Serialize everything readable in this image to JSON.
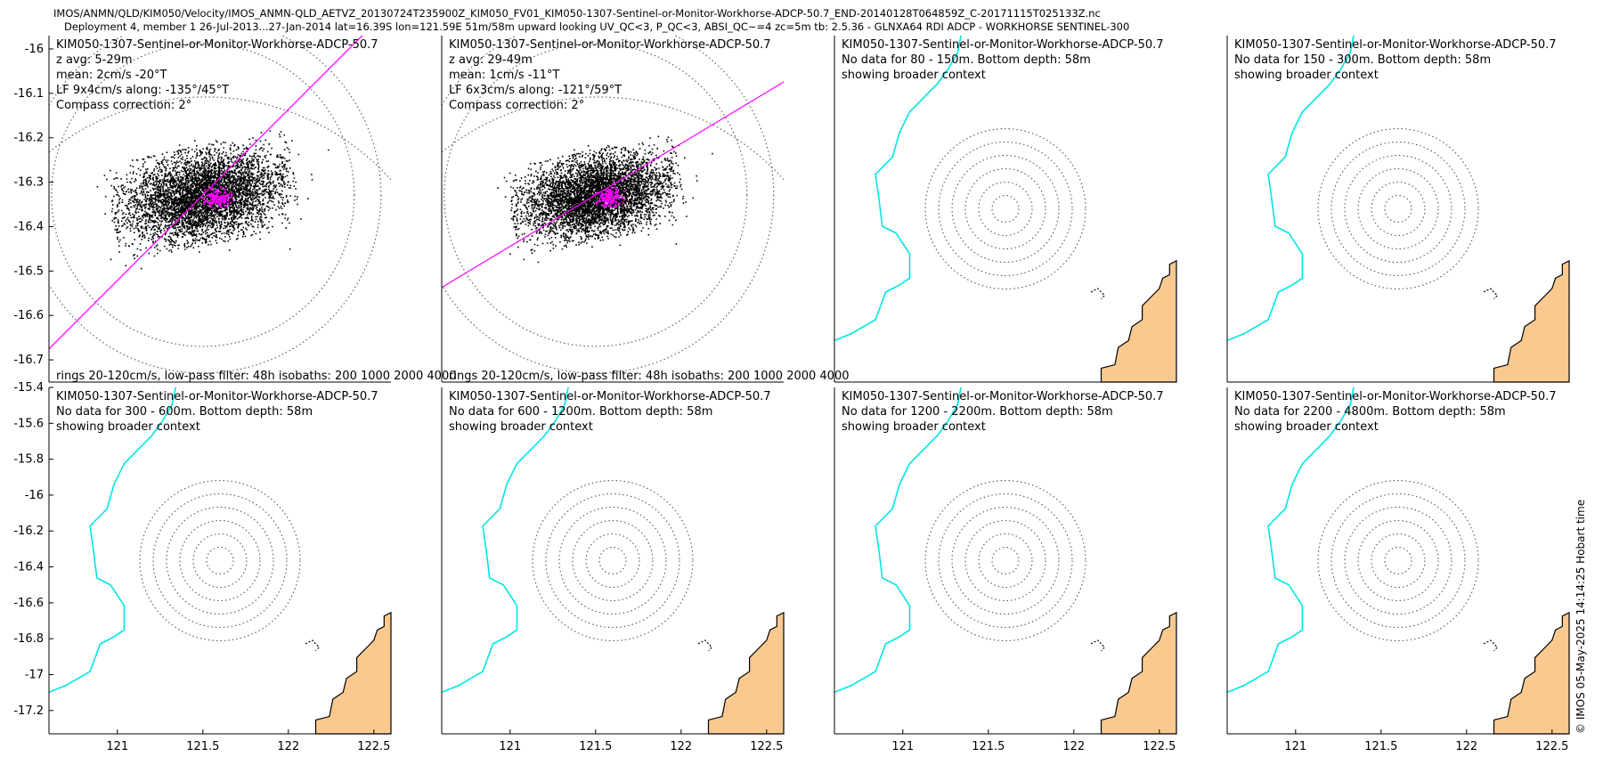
{
  "header": {
    "line1": "IMOS/ANMN/QLD/KIM050/Velocity/IMOS_ANMN-QLD_AETVZ_20130724T235900Z_KIM050_FV01_KIM050-1307-Sentinel-or-Monitor-Workhorse-ADCP-50.7_END-20140128T064859Z_C-20171115T025133Z.nc",
    "line2": "Deployment 4, member 1 26-Jul-2013...27-Jan-2014 lat=16.39S lon=121.59E 51m/58m upward looking UV_QC<3, P_QC<3, ABSI_QC~=4 zc=5m tb: 2.5.36 - GLNXA64 RDI ADCP - WORKHORSE SENTINEL-300"
  },
  "side_label": "© IMOS 05-May-2025 14:14:25 Hobart time",
  "colors": {
    "scatter": "#000000",
    "lowpass": "#ff00ff",
    "coastline": "#00e5e5",
    "land": "#f9c98f",
    "rings": "#555555"
  },
  "chart_data": [
    {
      "type": "scatter",
      "title": "KIM050-1307-Sentinel-or-Monitor-Workhorse-ADCP-50.7",
      "annotations": [
        "z avg: 5-29m",
        "mean: 2cm/s -20°T",
        "LF 9x4cm/s along: -135°/45°T",
        "Compass correction: 2°"
      ],
      "footer": "rings 20-120cm/s, low-pass filter: 48h isobaths: 200 1000 2000 4000",
      "xlim": [
        120.6,
        122.6
      ],
      "ylim": [
        -16.75,
        -15.97
      ],
      "yticks": [
        -16,
        -16.1,
        -16.2,
        -16.3,
        -16.4,
        -16.5,
        -16.6,
        -16.7
      ],
      "center": [
        121.59,
        -16.39
      ],
      "ellipse": {
        "semi_major": 0.56,
        "semi_minor": 0.22,
        "orientation_deg": -12
      },
      "principal_axis_deg": 45,
      "rings": [
        120
      ],
      "has_data": true
    },
    {
      "type": "scatter",
      "title": "KIM050-1307-Sentinel-or-Monitor-Workhorse-ADCP-50.7",
      "annotations": [
        "z avg: 29-49m",
        "mean: 1cm/s -11°T",
        "LF 6x3cm/s along: -121°/59°T",
        "Compass correction: 2°"
      ],
      "footer": "rings 20-120cm/s, low-pass filter: 48h isobaths: 200 1000 2000 4000",
      "xlim": [
        120.6,
        122.6
      ],
      "ylim": [
        -16.75,
        -15.97
      ],
      "yticks": [],
      "center": [
        121.59,
        -16.39
      ],
      "ellipse": {
        "semi_major": 0.52,
        "semi_minor": 0.2,
        "orientation_deg": -12
      },
      "principal_axis_deg": 31,
      "rings": [
        120
      ],
      "has_data": true
    },
    {
      "type": "scatter",
      "title": "KIM050-1307-Sentinel-or-Monitor-Workhorse-ADCP-50.7",
      "annotations": [
        "No data for 80 - 150m. Bottom depth: 58m",
        "showing broader context"
      ],
      "xlim": [
        120.6,
        122.6
      ],
      "yticks": [],
      "center": [
        121.59,
        -16.39
      ],
      "rings": [
        20,
        40,
        60,
        80,
        100,
        120
      ],
      "has_data": false
    },
    {
      "type": "scatter",
      "title": "KIM050-1307-Sentinel-or-Monitor-Workhorse-ADCP-50.7",
      "annotations": [
        "No data for 150 - 300m. Bottom depth: 58m",
        "showing broader context"
      ],
      "xlim": [
        120.6,
        122.6
      ],
      "yticks": [],
      "center": [
        121.59,
        -16.39
      ],
      "rings": [
        20,
        40,
        60,
        80,
        100,
        120
      ],
      "has_data": false
    },
    {
      "type": "scatter",
      "title": "KIM050-1307-Sentinel-or-Monitor-Workhorse-ADCP-50.7",
      "annotations": [
        "No data for 300 - 600m. Bottom depth: 58m",
        "showing broader context"
      ],
      "xlim": [
        120.6,
        122.6
      ],
      "ylim": [
        -17.33,
        -15.4
      ],
      "yticks": [
        -15.4,
        -15.6,
        -15.8,
        -16,
        -16.2,
        -16.4,
        -16.6,
        -16.8,
        -17,
        -17.2
      ],
      "xticks": [
        121,
        121.5,
        122,
        122.5
      ],
      "center": [
        121.59,
        -16.39
      ],
      "rings": [
        20,
        40,
        60,
        80,
        100,
        120
      ],
      "has_data": false
    },
    {
      "type": "scatter",
      "title": "KIM050-1307-Sentinel-or-Monitor-Workhorse-ADCP-50.7",
      "annotations": [
        "No data for 600 - 1200m. Bottom depth: 58m",
        "showing broader context"
      ],
      "xlim": [
        120.6,
        122.6
      ],
      "yticks": [],
      "xticks": [
        121,
        121.5,
        122,
        122.5
      ],
      "center": [
        121.59,
        -16.39
      ],
      "rings": [
        20,
        40,
        60,
        80,
        100,
        120
      ],
      "has_data": false
    },
    {
      "type": "scatter",
      "title": "KIM050-1307-Sentinel-or-Monitor-Workhorse-ADCP-50.7",
      "annotations": [
        "No data for 1200 - 2200m. Bottom depth: 58m",
        "showing broader context"
      ],
      "xlim": [
        120.6,
        122.6
      ],
      "yticks": [],
      "xticks": [
        121,
        121.5,
        122,
        122.5
      ],
      "center": [
        121.59,
        -16.39
      ],
      "rings": [
        20,
        40,
        60,
        80,
        100,
        120
      ],
      "has_data": false
    },
    {
      "type": "scatter",
      "title": "KIM050-1307-Sentinel-or-Monitor-Workhorse-ADCP-50.7",
      "annotations": [
        "No data for 2200 - 4800m. Bottom depth: 58m",
        "showing broader context"
      ],
      "xlim": [
        120.6,
        122.6
      ],
      "yticks": [],
      "xticks": [
        121,
        121.5,
        122,
        122.5
      ],
      "center": [
        121.59,
        -16.39
      ],
      "rings": [
        20,
        40,
        60,
        80,
        100,
        120
      ],
      "has_data": false
    }
  ]
}
